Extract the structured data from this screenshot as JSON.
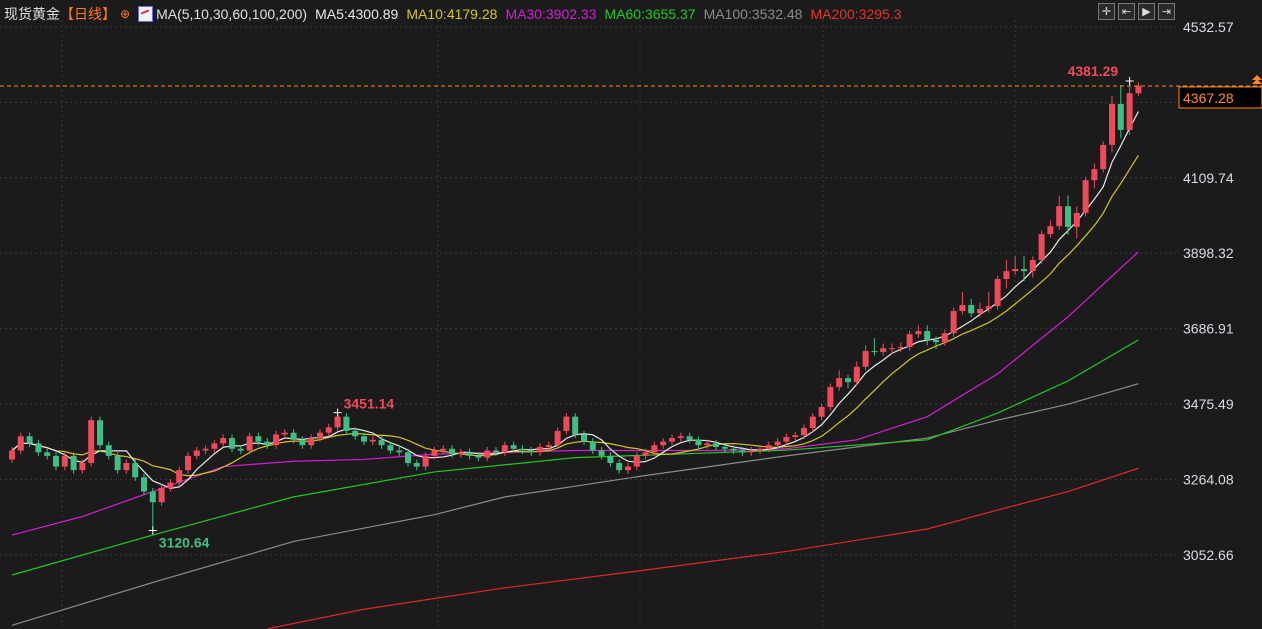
{
  "header": {
    "instrument": "现货黄金",
    "period": "【日线】",
    "ma_params": "MA(5,10,30,60,100,200)",
    "ma5": "MA5:4300.89",
    "ma10": "MA10:4179.28",
    "ma30": "MA30:3902.33",
    "ma60": "MA60:3655.37",
    "ma100": "MA100:3532.48",
    "ma200": "MA200:3295.3"
  },
  "toolbar": [
    {
      "icon": "crosshair-icon",
      "glyph": "✛"
    },
    {
      "icon": "scroll-start-icon",
      "glyph": "⇤"
    },
    {
      "icon": "play-icon",
      "glyph": "▶"
    },
    {
      "icon": "scroll-end-icon",
      "glyph": "⇥"
    }
  ],
  "colors": {
    "background": "#1b1b1b",
    "up": "#f04a5a",
    "down": "#3fbf86",
    "ma5": "#e8e8e8",
    "ma10": "#d6c61a",
    "ma30": "#d61ed6",
    "ma60": "#22c822",
    "ma100": "#8c8c8c",
    "ma200": "#e02828",
    "current_price": "#ff8c1a"
  },
  "chart_data": {
    "type": "candlestick",
    "title": "",
    "y_ticks": [
      "4532.57",
      "4109.74",
      "3898.32",
      "3686.91",
      "3475.49",
      "3264.08",
      "3052.66"
    ],
    "y_tick_values": [
      4532.57,
      4321.15,
      4109.74,
      3898.32,
      3686.91,
      3475.49,
      3264.08,
      3052.66
    ],
    "ylim": [
      2844,
      4600
    ],
    "grid": true,
    "current_price": {
      "value": 4367.28,
      "label": "4367.28"
    },
    "annotations": [
      {
        "label": "4381.29",
        "index": 127,
        "price": 4381.29,
        "kind": "high"
      },
      {
        "label": "3451.14",
        "index": 37,
        "price": 3451.14,
        "kind": "high"
      },
      {
        "label": "3120.64",
        "index": 16,
        "price": 3120.64,
        "kind": "low"
      }
    ],
    "ohlc": [
      [
        3320,
        3355,
        3310,
        3345
      ],
      [
        3345,
        3395,
        3335,
        3385
      ],
      [
        3385,
        3395,
        3355,
        3365
      ],
      [
        3365,
        3375,
        3330,
        3340
      ],
      [
        3340,
        3350,
        3320,
        3330
      ],
      [
        3330,
        3340,
        3290,
        3300
      ],
      [
        3300,
        3340,
        3290,
        3330
      ],
      [
        3330,
        3340,
        3280,
        3290
      ],
      [
        3290,
        3320,
        3280,
        3310
      ],
      [
        3310,
        3440,
        3300,
        3430
      ],
      [
        3430,
        3440,
        3350,
        3360
      ],
      [
        3360,
        3370,
        3320,
        3330
      ],
      [
        3330,
        3340,
        3280,
        3290
      ],
      [
        3290,
        3320,
        3280,
        3310
      ],
      [
        3310,
        3320,
        3260,
        3270
      ],
      [
        3270,
        3280,
        3220,
        3230
      ],
      [
        3230,
        3240,
        3120.64,
        3200
      ],
      [
        3200,
        3250,
        3190,
        3240
      ],
      [
        3240,
        3265,
        3230,
        3255
      ],
      [
        3255,
        3300,
        3245,
        3290
      ],
      [
        3290,
        3340,
        3280,
        3330
      ],
      [
        3330,
        3355,
        3320,
        3345
      ],
      [
        3345,
        3360,
        3335,
        3350
      ],
      [
        3350,
        3375,
        3340,
        3365
      ],
      [
        3365,
        3390,
        3355,
        3380
      ],
      [
        3380,
        3390,
        3340,
        3350
      ],
      [
        3350,
        3360,
        3335,
        3345
      ],
      [
        3345,
        3395,
        3335,
        3385
      ],
      [
        3385,
        3395,
        3360,
        3370
      ],
      [
        3370,
        3380,
        3350,
        3360
      ],
      [
        3360,
        3400,
        3350,
        3390
      ],
      [
        3390,
        3405,
        3380,
        3395
      ],
      [
        3395,
        3405,
        3365,
        3375
      ],
      [
        3375,
        3385,
        3350,
        3360
      ],
      [
        3360,
        3390,
        3350,
        3380
      ],
      [
        3380,
        3405,
        3370,
        3395
      ],
      [
        3395,
        3420,
        3385,
        3410
      ],
      [
        3410,
        3451.14,
        3400,
        3440
      ],
      [
        3440,
        3450,
        3390,
        3400
      ],
      [
        3400,
        3410,
        3375,
        3385
      ],
      [
        3385,
        3395,
        3360,
        3370
      ],
      [
        3370,
        3385,
        3360,
        3375
      ],
      [
        3375,
        3385,
        3350,
        3360
      ],
      [
        3360,
        3370,
        3335,
        3345
      ],
      [
        3345,
        3355,
        3330,
        3340
      ],
      [
        3340,
        3350,
        3300,
        3310
      ],
      [
        3310,
        3320,
        3290,
        3300
      ],
      [
        3300,
        3340,
        3290,
        3330
      ],
      [
        3330,
        3355,
        3320,
        3345
      ],
      [
        3345,
        3360,
        3335,
        3350
      ],
      [
        3350,
        3360,
        3325,
        3335
      ],
      [
        3335,
        3350,
        3325,
        3340
      ],
      [
        3340,
        3350,
        3320,
        3330
      ],
      [
        3330,
        3340,
        3315,
        3325
      ],
      [
        3325,
        3355,
        3315,
        3345
      ],
      [
        3345,
        3355,
        3330,
        3340
      ],
      [
        3340,
        3370,
        3330,
        3360
      ],
      [
        3360,
        3370,
        3340,
        3350
      ],
      [
        3350,
        3360,
        3335,
        3345
      ],
      [
        3345,
        3355,
        3330,
        3340
      ],
      [
        3340,
        3365,
        3330,
        3355
      ],
      [
        3355,
        3370,
        3345,
        3360
      ],
      [
        3360,
        3410,
        3350,
        3400
      ],
      [
        3400,
        3450,
        3390,
        3440
      ],
      [
        3440,
        3450,
        3380,
        3390
      ],
      [
        3390,
        3400,
        3360,
        3370
      ],
      [
        3370,
        3380,
        3335,
        3345
      ],
      [
        3345,
        3355,
        3320,
        3330
      ],
      [
        3330,
        3340,
        3300,
        3310
      ],
      [
        3310,
        3320,
        3280,
        3290
      ],
      [
        3290,
        3310,
        3280,
        3300
      ],
      [
        3300,
        3340,
        3290,
        3330
      ],
      [
        3330,
        3350,
        3320,
        3340
      ],
      [
        3340,
        3370,
        3330,
        3360
      ],
      [
        3360,
        3380,
        3350,
        3370
      ],
      [
        3370,
        3390,
        3360,
        3380
      ],
      [
        3380,
        3395,
        3370,
        3385
      ],
      [
        3385,
        3395,
        3365,
        3375
      ],
      [
        3375,
        3385,
        3350,
        3360
      ],
      [
        3360,
        3375,
        3350,
        3365
      ],
      [
        3365,
        3375,
        3345,
        3355
      ],
      [
        3355,
        3365,
        3340,
        3350
      ],
      [
        3350,
        3360,
        3335,
        3345
      ],
      [
        3345,
        3355,
        3330,
        3340
      ],
      [
        3340,
        3355,
        3330,
        3345
      ],
      [
        3345,
        3360,
        3335,
        3350
      ],
      [
        3350,
        3370,
        3340,
        3360
      ],
      [
        3360,
        3380,
        3350,
        3370
      ],
      [
        3370,
        3393,
        3360,
        3383
      ],
      [
        3383,
        3398,
        3373,
        3388
      ],
      [
        3388,
        3418,
        3378,
        3408
      ],
      [
        3408,
        3450,
        3398,
        3440
      ],
      [
        3440,
        3477,
        3430,
        3467
      ],
      [
        3467,
        3533,
        3457,
        3523
      ],
      [
        3523,
        3570,
        3513,
        3548
      ],
      [
        3548,
        3558,
        3520,
        3537
      ],
      [
        3537,
        3595,
        3527,
        3580
      ],
      [
        3580,
        3640,
        3570,
        3624
      ],
      [
        3624,
        3660,
        3611,
        3621
      ],
      [
        3621,
        3645,
        3611,
        3632
      ],
      [
        3632,
        3645,
        3615,
        3632
      ],
      [
        3632,
        3648,
        3622,
        3635
      ],
      [
        3635,
        3681,
        3625,
        3671
      ],
      [
        3671,
        3696,
        3661,
        3680
      ],
      [
        3680,
        3696,
        3640,
        3655
      ],
      [
        3655,
        3665,
        3630,
        3649
      ],
      [
        3649,
        3684,
        3639,
        3674
      ],
      [
        3674,
        3746,
        3664,
        3736
      ],
      [
        3736,
        3790,
        3726,
        3753
      ],
      [
        3753,
        3770,
        3720,
        3730
      ],
      [
        3730,
        3760,
        3720,
        3742
      ],
      [
        3742,
        3790,
        3732,
        3750
      ],
      [
        3750,
        3836,
        3740,
        3826
      ],
      [
        3826,
        3880,
        3800,
        3848
      ],
      [
        3848,
        3890,
        3838,
        3854
      ],
      [
        3854,
        3890,
        3820,
        3848
      ],
      [
        3848,
        3889,
        3830,
        3879
      ],
      [
        3879,
        3962,
        3869,
        3952
      ],
      [
        3952,
        3990,
        3942,
        3974
      ],
      [
        3974,
        4060,
        3964,
        4030
      ],
      [
        4030,
        4060,
        3950,
        3972
      ],
      [
        3972,
        4030,
        3940,
        4011
      ],
      [
        4011,
        4113,
        4001,
        4103
      ],
      [
        4103,
        4150,
        4080,
        4134
      ],
      [
        4134,
        4212,
        4124,
        4202
      ],
      [
        4202,
        4340,
        4180,
        4317
      ],
      [
        4317,
        4370,
        4220,
        4244
      ],
      [
        4244,
        4381.29,
        4230,
        4347
      ],
      [
        4347,
        4378,
        4340,
        4367.28
      ]
    ],
    "moving_averages": [
      {
        "name": "MA100",
        "index": [
          0,
          16,
          32,
          48,
          56,
          72,
          88,
          104,
          112,
          120,
          128
        ],
        "values": [
          2855,
          2975,
          3090,
          3165,
          3215,
          3275,
          3330,
          3380,
          3430,
          3475,
          3532.48
        ]
      },
      {
        "name": "MA200",
        "index": [
          29,
          40,
          56,
          72,
          88,
          104,
          112,
          120,
          128
        ],
        "values": [
          2845,
          2900,
          2960,
          3010,
          3062,
          3125,
          3178,
          3230,
          3295.3
        ]
      },
      {
        "name": "MA60",
        "index": [
          0,
          16,
          32,
          48,
          64,
          88,
          104,
          112,
          120,
          128
        ],
        "values": [
          2996,
          3108,
          3215,
          3285,
          3325,
          3346,
          3375,
          3450,
          3540,
          3655.37
        ]
      },
      {
        "name": "MA30",
        "index": [
          0,
          8,
          16,
          24,
          32,
          40,
          48,
          64,
          80,
          88,
          96,
          104,
          112,
          120,
          128
        ],
        "values": [
          3108,
          3160,
          3230,
          3300,
          3315,
          3320,
          3335,
          3345,
          3345,
          3350,
          3375,
          3440,
          3560,
          3720,
          3902.33
        ]
      }
    ],
    "computed_ma_periods": {
      "MA5": 5,
      "MA10": 10
    }
  }
}
